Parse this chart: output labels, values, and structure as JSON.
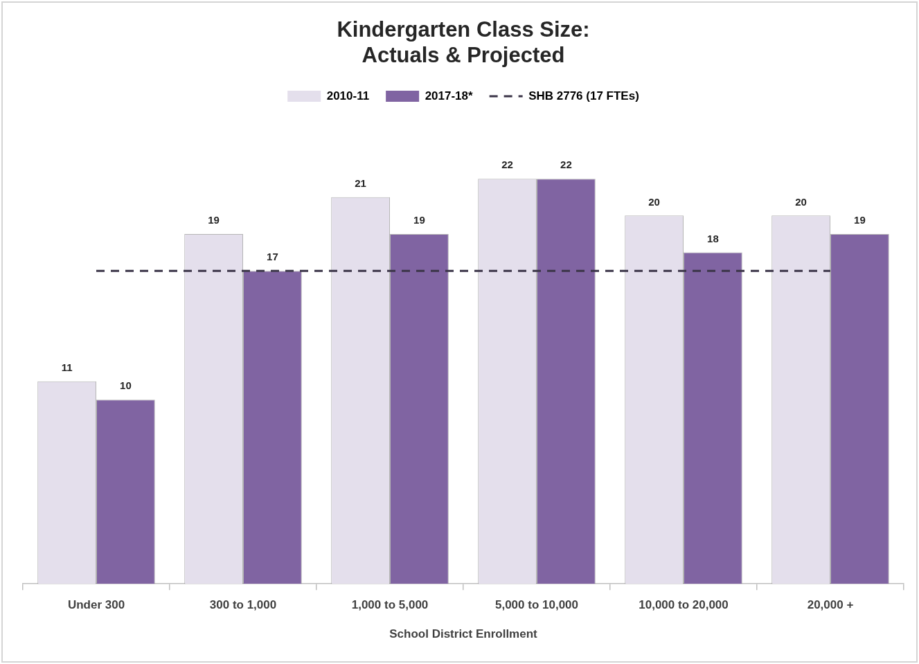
{
  "chart_data": {
    "type": "bar",
    "title": "Kindergarten Class Size:\nActuals & Projected",
    "xlabel": "School District Enrollment",
    "categories": [
      "Under 300",
      "300 to 1,000",
      "1,000 to 5,000",
      "5,000 to 10,000",
      "10,000 to 20,000",
      "20,000 +"
    ],
    "series": [
      {
        "name": "2010-11",
        "color": "#e4dfec",
        "values": [
          11,
          19,
          21,
          22,
          20,
          20
        ]
      },
      {
        "name": "2017-18*",
        "color": "#8064a2",
        "values": [
          10,
          17,
          19,
          22,
          18,
          19
        ]
      }
    ],
    "ref_lines": [
      {
        "axis": "y",
        "value": 17,
        "label": "SHB 2776 (17 FTEs)",
        "color": "#3b3548",
        "line_style": "dashed"
      }
    ],
    "data_labels": true,
    "legend": "top",
    "grid": false,
    "tick_labels": "x"
  }
}
